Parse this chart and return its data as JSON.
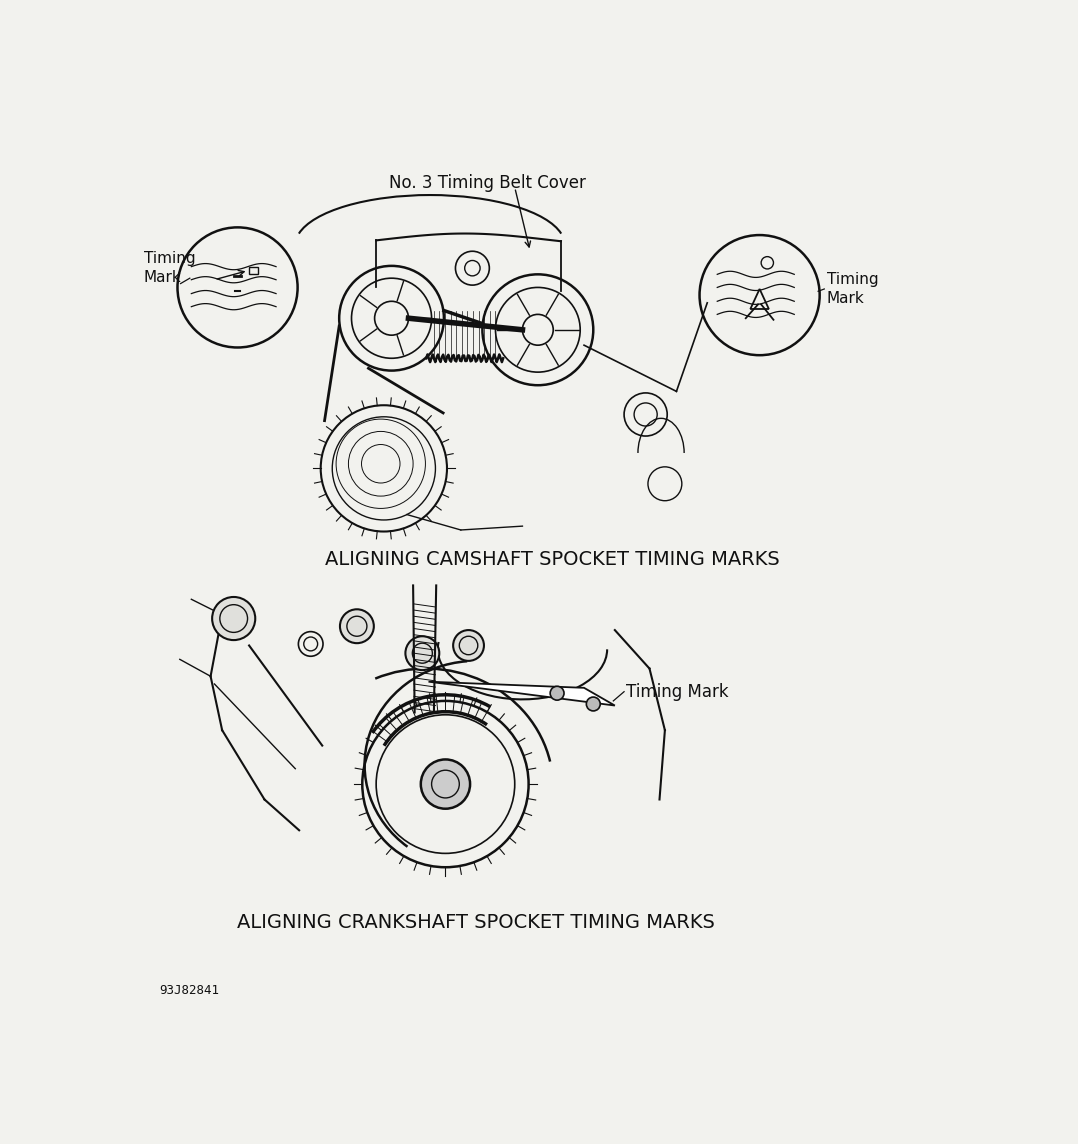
{
  "bg_color": "#f2f2ee",
  "line_color": "#111111",
  "title1": "ALIGNING CAMSHAFT SPOCKET TIMING MARKS",
  "title2": "ALIGNING CRANKSHAFT SPOCKET TIMING MARKS",
  "label_no3": "No. 3 Timing Belt Cover",
  "label_timing_left": "Timing\nMark",
  "label_timing_right": "Timing\nMark",
  "label_timing_lower": "Timing Mark",
  "label_code": "93J82841",
  "font_size_title": 14,
  "font_size_label": 11,
  "font_size_code": 9
}
